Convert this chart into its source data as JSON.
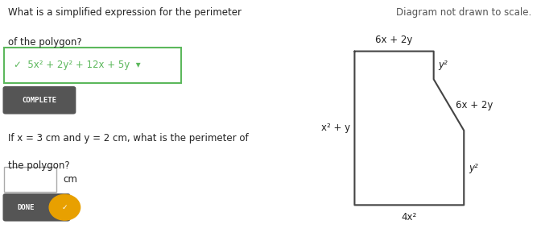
{
  "title_note": "Diagram not drawn to scale.",
  "question_line1": "What is a simplified expression for the perimeter",
  "question_line2": "of the polygon?",
  "answer_box_text": "✓  5x² + 2y² + 12x + 5y  ▾",
  "complete_label": "COMPLETE",
  "question2_line1": "If x = 3 cm and y = 2 cm, what is the perimeter of",
  "question2_line2": "the polygon?",
  "input_box_label": "cm",
  "done_label": "DONE",
  "polygon_labels": {
    "top": "6x + 2y",
    "left": "x² + y",
    "bottom": "4x²",
    "top_right": "y²",
    "diagonal": "6x + 2y",
    "bottom_right": "y²"
  },
  "bg_color": "#ffffff",
  "answer_box_color": "#ffffff",
  "answer_border_color": "#5cb85c",
  "answer_text_color": "#5cb85c",
  "complete_bg": "#555555",
  "complete_text_color": "#ffffff",
  "done_bg": "#555555",
  "done_icon_bg": "#e8a000",
  "polygon_color": "#444444",
  "text_color": "#222222",
  "note_color": "#555555"
}
